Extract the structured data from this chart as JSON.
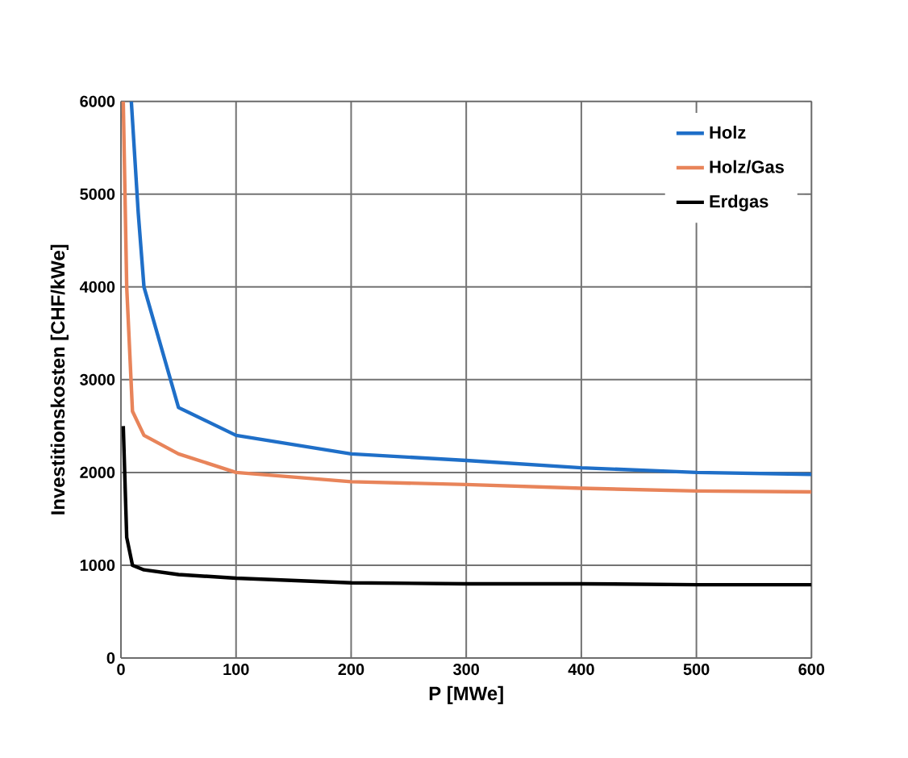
{
  "chart_data": {
    "type": "line",
    "xlabel": "P  [MWe]",
    "ylabel": "Investitionskosten  [CHF/kWe]",
    "xlim": [
      0,
      600
    ],
    "ylim": [
      0,
      6000
    ],
    "xticks": [
      0,
      100,
      200,
      300,
      400,
      500,
      600
    ],
    "yticks": [
      0,
      1000,
      2000,
      3000,
      4000,
      5000,
      6000
    ],
    "grid": true,
    "legend": "top right",
    "marker": "none",
    "series": [
      {
        "name": "Holz",
        "color": "#1f6fc8",
        "x": [
          9,
          15,
          20,
          50,
          100,
          200,
          300,
          400,
          500,
          600
        ],
        "values": [
          6000,
          4800,
          4000,
          2700,
          2400,
          2200,
          2130,
          2050,
          2000,
          1980
        ]
      },
      {
        "name": "Holz/Gas",
        "color": "#e8845a",
        "x": [
          2,
          5,
          10,
          20,
          50,
          100,
          200,
          300,
          400,
          500,
          600
        ],
        "values": [
          6000,
          4000,
          2660,
          2400,
          2200,
          2000,
          1900,
          1870,
          1830,
          1800,
          1790
        ]
      },
      {
        "name": "Erdgas",
        "color": "#000000",
        "x": [
          2,
          5,
          10,
          20,
          50,
          100,
          200,
          300,
          400,
          500,
          600
        ],
        "values": [
          2500,
          1300,
          1000,
          950,
          900,
          860,
          810,
          800,
          800,
          790,
          790
        ]
      }
    ]
  }
}
